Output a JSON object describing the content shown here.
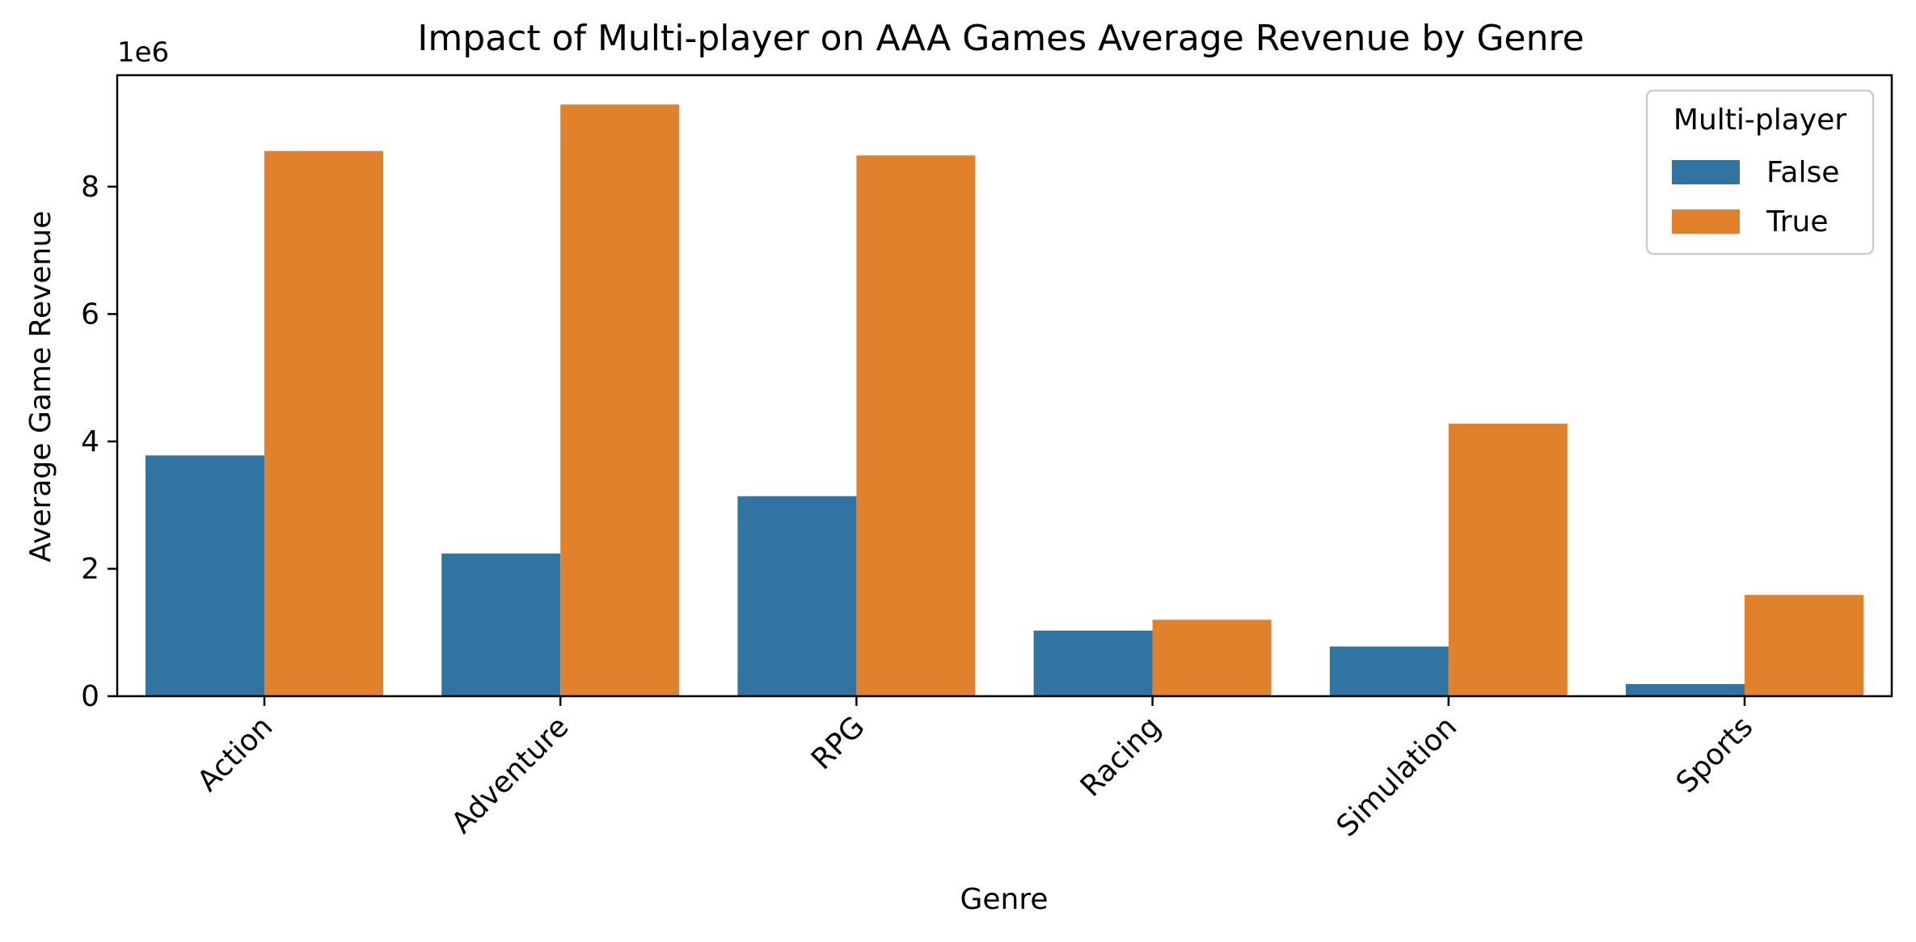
{
  "chart_data": {
    "type": "bar",
    "title": "Impact of Multi-player on AAA Games Average Revenue by Genre",
    "xlabel": "Genre",
    "ylabel": "Average Game Revenue",
    "offset_label": "1e6",
    "categories": [
      "Action",
      "Adventure",
      "RPG",
      "Racing",
      "Simulation",
      "Sports"
    ],
    "series": [
      {
        "name": "False",
        "color": "#3274a1",
        "values": [
          3780000,
          2240000,
          3140000,
          1030000,
          780000,
          190000
        ]
      },
      {
        "name": "True",
        "color": "#e1812c",
        "values": [
          8560000,
          9290000,
          8490000,
          1200000,
          4280000,
          1590000
        ]
      }
    ],
    "ylim": [
      0,
      9750000
    ],
    "yticks": [
      0,
      2000000,
      4000000,
      6000000,
      8000000
    ],
    "ytick_labels": [
      "0",
      "2",
      "4",
      "6",
      "8"
    ],
    "grid": false,
    "legend": {
      "title": "Multi-player",
      "placement": "top-right"
    }
  }
}
